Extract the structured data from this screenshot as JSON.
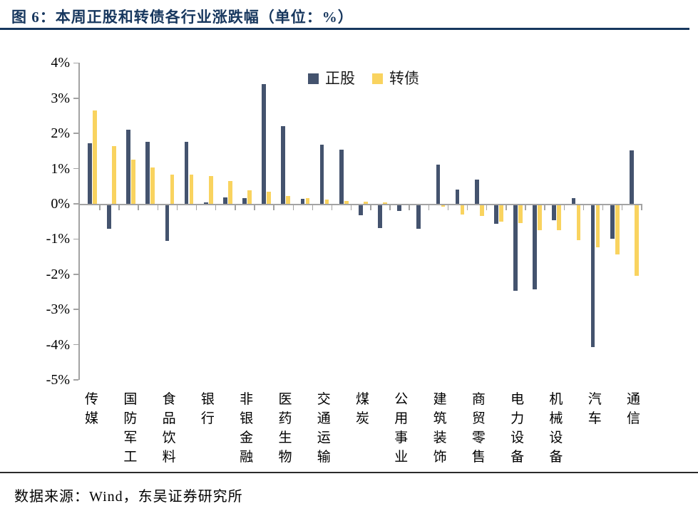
{
  "title": {
    "text": "图 6：本周正股和转债各行业涨跌幅（单位：%）"
  },
  "footer": {
    "source": "数据来源：Wind，东吴证券研究所"
  },
  "colors": {
    "title_navy": "#17375e",
    "stock_bar": "#44536e",
    "bond_bar": "#f9d35f",
    "axis_gray": "#a3a3a3"
  },
  "chart_data": {
    "type": "bar",
    "title": "本周正股和转债各行业涨跌幅（单位：%）",
    "unit": "%",
    "grid": false,
    "legend_position": "top-center",
    "ylim": [
      -5,
      4
    ],
    "yticks": [
      "4%",
      "3%",
      "2%",
      "1%",
      "0%",
      "-1%",
      "-2%",
      "-3%",
      "-4%",
      "-5%"
    ],
    "note": "29 industry pairs sorted by convertible-bond return; only alternating categories are labeled on the axis",
    "categories": [
      "传媒",
      "",
      "国防军工",
      "",
      "食品饮料",
      "",
      "银行",
      "",
      "非银金融",
      "",
      "医药生物",
      "",
      "交通运输",
      "",
      "煤炭",
      "",
      "公用事业",
      "",
      "建筑装饰",
      "",
      "商贸零售",
      "",
      "电力设备",
      "",
      "机械设备",
      "",
      "汽车",
      "",
      "通信"
    ],
    "series": [
      {
        "name": "正股",
        "color": "#44536e",
        "values": [
          1.72,
          -0.71,
          2.11,
          1.76,
          -1.06,
          1.77,
          0.05,
          0.18,
          0.16,
          3.41,
          2.21,
          0.14,
          1.69,
          1.53,
          -0.33,
          -0.68,
          -0.21,
          -0.7,
          1.11,
          0.41,
          0.68,
          -0.57,
          -2.47,
          -2.42,
          -0.46,
          0.16,
          -4.07,
          -1.0,
          1.52
        ]
      },
      {
        "name": "转债",
        "color": "#f9d35f",
        "values": [
          2.66,
          1.64,
          1.26,
          1.03,
          0.84,
          0.83,
          0.79,
          0.64,
          0.39,
          0.35,
          0.22,
          0.17,
          0.13,
          0.08,
          0.07,
          0.05,
          0.0,
          0.0,
          -0.08,
          -0.3,
          -0.35,
          -0.51,
          -0.54,
          -0.74,
          -0.74,
          -1.03,
          -1.24,
          -1.43,
          -2.05
        ]
      }
    ]
  }
}
